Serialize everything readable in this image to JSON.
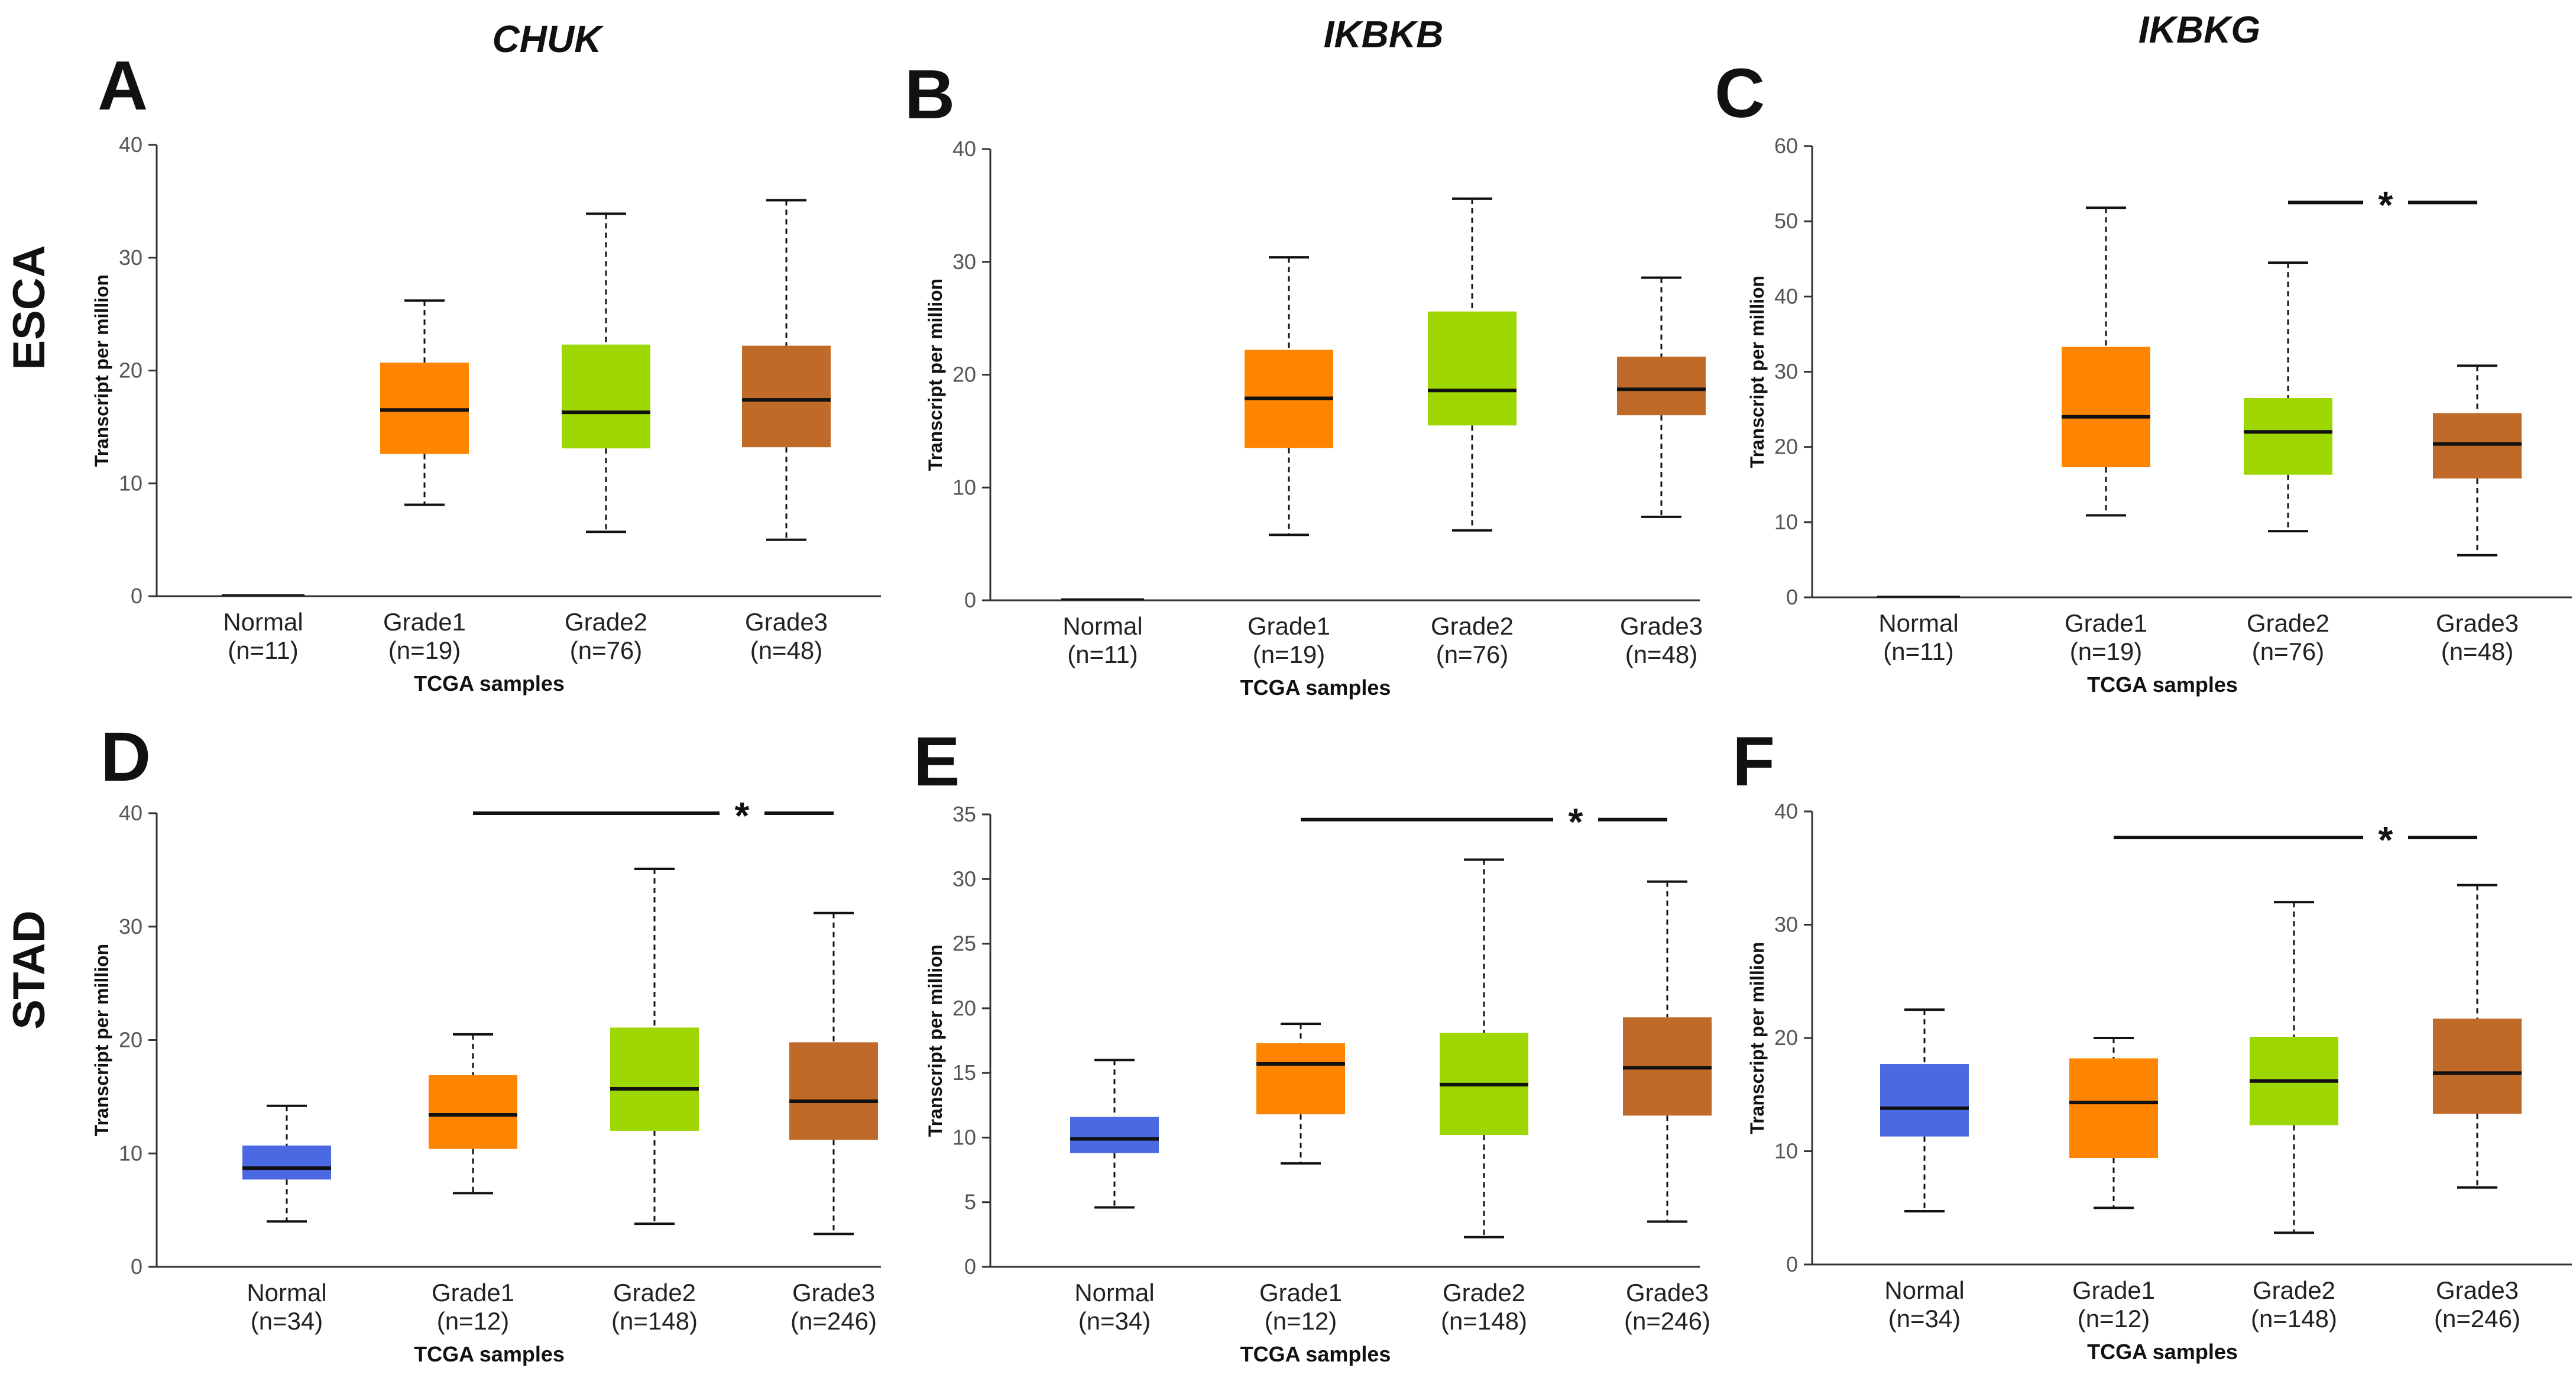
{
  "genes": [
    "CHUK",
    "IKBKB",
    "IKBKG"
  ],
  "rows": [
    "ESCA",
    "STAD"
  ],
  "colors": {
    "Normal": "#4a69e2",
    "Grade1": "#ff8400",
    "Grade2": "#9dd600",
    "Grade3": "#c06a29",
    "axis": "#333333",
    "line": "#111111"
  },
  "chart_data": [
    {
      "panel": "A",
      "gene": "CHUK",
      "cohort": "ESCA",
      "type": "box",
      "ylabel": "Transcript per million",
      "xlabel": "TCGA samples",
      "ylim": [
        0,
        40
      ],
      "yticks": [
        0,
        10,
        20,
        30,
        40
      ],
      "categories": [
        "Normal",
        "Grade1",
        "Grade2",
        "Grade3"
      ],
      "ns": [
        "(n=11)",
        "(n=19)",
        "(n=76)",
        "(n=48)"
      ],
      "boxes": [
        {
          "min": 0.1,
          "q1": 0.1,
          "median": 0.1,
          "q3": 0.1,
          "max": 0.1
        },
        {
          "min": 8.1,
          "q1": 12.6,
          "median": 16.5,
          "q3": 20.7,
          "max": 26.2
        },
        {
          "min": 5.7,
          "q1": 13.1,
          "median": 16.3,
          "q3": 22.3,
          "max": 33.9
        },
        {
          "min": 5.0,
          "q1": 13.2,
          "median": 17.4,
          "q3": 22.2,
          "max": 35.1
        }
      ],
      "significance": null
    },
    {
      "panel": "B",
      "gene": "IKBKB",
      "cohort": "ESCA",
      "type": "box",
      "ylabel": "Transcript per million",
      "xlabel": "TCGA samples",
      "ylim": [
        0,
        40
      ],
      "yticks": [
        0,
        10,
        20,
        30,
        40
      ],
      "categories": [
        "Normal",
        "Grade1",
        "Grade2",
        "Grade3"
      ],
      "ns": [
        "(n=11)",
        "(n=19)",
        "(n=76)",
        "(n=48)"
      ],
      "boxes": [
        {
          "min": 0.1,
          "q1": 0.1,
          "median": 0.1,
          "q3": 0.1,
          "max": 0.1
        },
        {
          "min": 5.8,
          "q1": 13.5,
          "median": 17.9,
          "q3": 22.2,
          "max": 30.4
        },
        {
          "min": 6.2,
          "q1": 15.5,
          "median": 18.6,
          "q3": 25.6,
          "max": 35.6
        },
        {
          "min": 7.4,
          "q1": 16.4,
          "median": 18.7,
          "q3": 21.6,
          "max": 28.6
        }
      ],
      "significance": null
    },
    {
      "panel": "C",
      "gene": "IKBKG",
      "cohort": "ESCA",
      "type": "box",
      "ylabel": "Transcript per million",
      "xlabel": "TCGA samples",
      "ylim": [
        0,
        60
      ],
      "yticks": [
        0,
        10,
        20,
        30,
        40,
        50,
        60
      ],
      "categories": [
        "Normal",
        "Grade1",
        "Grade2",
        "Grade3"
      ],
      "ns": [
        "(n=11)",
        "(n=19)",
        "(n=76)",
        "(n=48)"
      ],
      "boxes": [
        {
          "min": 0.1,
          "q1": 0.1,
          "median": 0.1,
          "q3": 0.1,
          "max": 0.1
        },
        {
          "min": 10.9,
          "q1": 17.3,
          "median": 24.0,
          "q3": 33.3,
          "max": 51.8
        },
        {
          "min": 8.8,
          "q1": 16.3,
          "median": 22.0,
          "q3": 26.5,
          "max": 44.5
        },
        {
          "min": 5.6,
          "q1": 15.8,
          "median": 20.4,
          "q3": 24.5,
          "max": 30.8
        }
      ],
      "significance": {
        "from": "Grade2",
        "to": "Grade3",
        "label": "*",
        "y": 52.5
      }
    },
    {
      "panel": "D",
      "gene": "CHUK",
      "cohort": "STAD",
      "type": "box",
      "ylabel": "Transcript per million",
      "xlabel": "TCGA samples",
      "ylim": [
        0,
        40
      ],
      "yticks": [
        0,
        10,
        20,
        30,
        40
      ],
      "categories": [
        "Normal",
        "Grade1",
        "Grade2",
        "Grade3"
      ],
      "ns": [
        "(n=34)",
        "(n=12)",
        "(n=148)",
        "(n=246)"
      ],
      "boxes": [
        {
          "min": 4.0,
          "q1": 7.7,
          "median": 8.7,
          "q3": 10.7,
          "max": 14.2
        },
        {
          "min": 6.5,
          "q1": 10.4,
          "median": 13.4,
          "q3": 16.9,
          "max": 20.5
        },
        {
          "min": 3.8,
          "q1": 12.0,
          "median": 15.7,
          "q3": 21.1,
          "max": 35.1
        },
        {
          "min": 2.9,
          "q1": 11.2,
          "median": 14.6,
          "q3": 19.8,
          "max": 31.2
        }
      ],
      "significance": {
        "from": "Grade1",
        "to": "Grade3",
        "label": "*",
        "y": 40.0
      }
    },
    {
      "panel": "E",
      "gene": "IKBKB",
      "cohort": "STAD",
      "type": "box",
      "ylabel": "Transcript per million",
      "xlabel": "TCGA samples",
      "ylim": [
        0,
        35
      ],
      "yticks": [
        0,
        5,
        10,
        15,
        20,
        25,
        30,
        35
      ],
      "categories": [
        "Normal",
        "Grade1",
        "Grade2",
        "Grade3"
      ],
      "ns": [
        "(n=34)",
        "(n=12)",
        "(n=148)",
        "(n=246)"
      ],
      "boxes": [
        {
          "min": 4.6,
          "q1": 8.8,
          "median": 9.9,
          "q3": 11.6,
          "max": 16.0
        },
        {
          "min": 8.0,
          "q1": 11.8,
          "median": 15.7,
          "q3": 17.3,
          "max": 18.8
        },
        {
          "min": 2.3,
          "q1": 10.2,
          "median": 14.1,
          "q3": 18.1,
          "max": 31.5
        },
        {
          "min": 3.5,
          "q1": 11.7,
          "median": 15.4,
          "q3": 19.3,
          "max": 29.8
        }
      ],
      "significance": {
        "from": "Grade1",
        "to": "Grade3",
        "label": "*",
        "y": 34.6
      }
    },
    {
      "panel": "F",
      "gene": "IKBKG",
      "cohort": "STAD",
      "type": "box",
      "ylabel": "Transcript per million",
      "xlabel": "TCGA samples",
      "ylim": [
        0,
        40
      ],
      "yticks": [
        0,
        10,
        20,
        30,
        40
      ],
      "categories": [
        "Normal",
        "Grade1",
        "Grade2",
        "Grade3"
      ],
      "ns": [
        "(n=34)",
        "(n=12)",
        "(n=148)",
        "(n=246)"
      ],
      "boxes": [
        {
          "min": 4.7,
          "q1": 11.3,
          "median": 13.8,
          "q3": 17.7,
          "max": 22.5
        },
        {
          "min": 5.0,
          "q1": 9.4,
          "median": 14.3,
          "q3": 18.2,
          "max": 20.0
        },
        {
          "min": 2.8,
          "q1": 12.3,
          "median": 16.2,
          "q3": 20.1,
          "max": 32.0
        },
        {
          "min": 6.8,
          "q1": 13.3,
          "median": 16.9,
          "q3": 21.7,
          "max": 33.5
        }
      ],
      "significance": {
        "from": "Grade1",
        "to": "Grade3",
        "label": "*",
        "y": 37.7
      }
    }
  ]
}
